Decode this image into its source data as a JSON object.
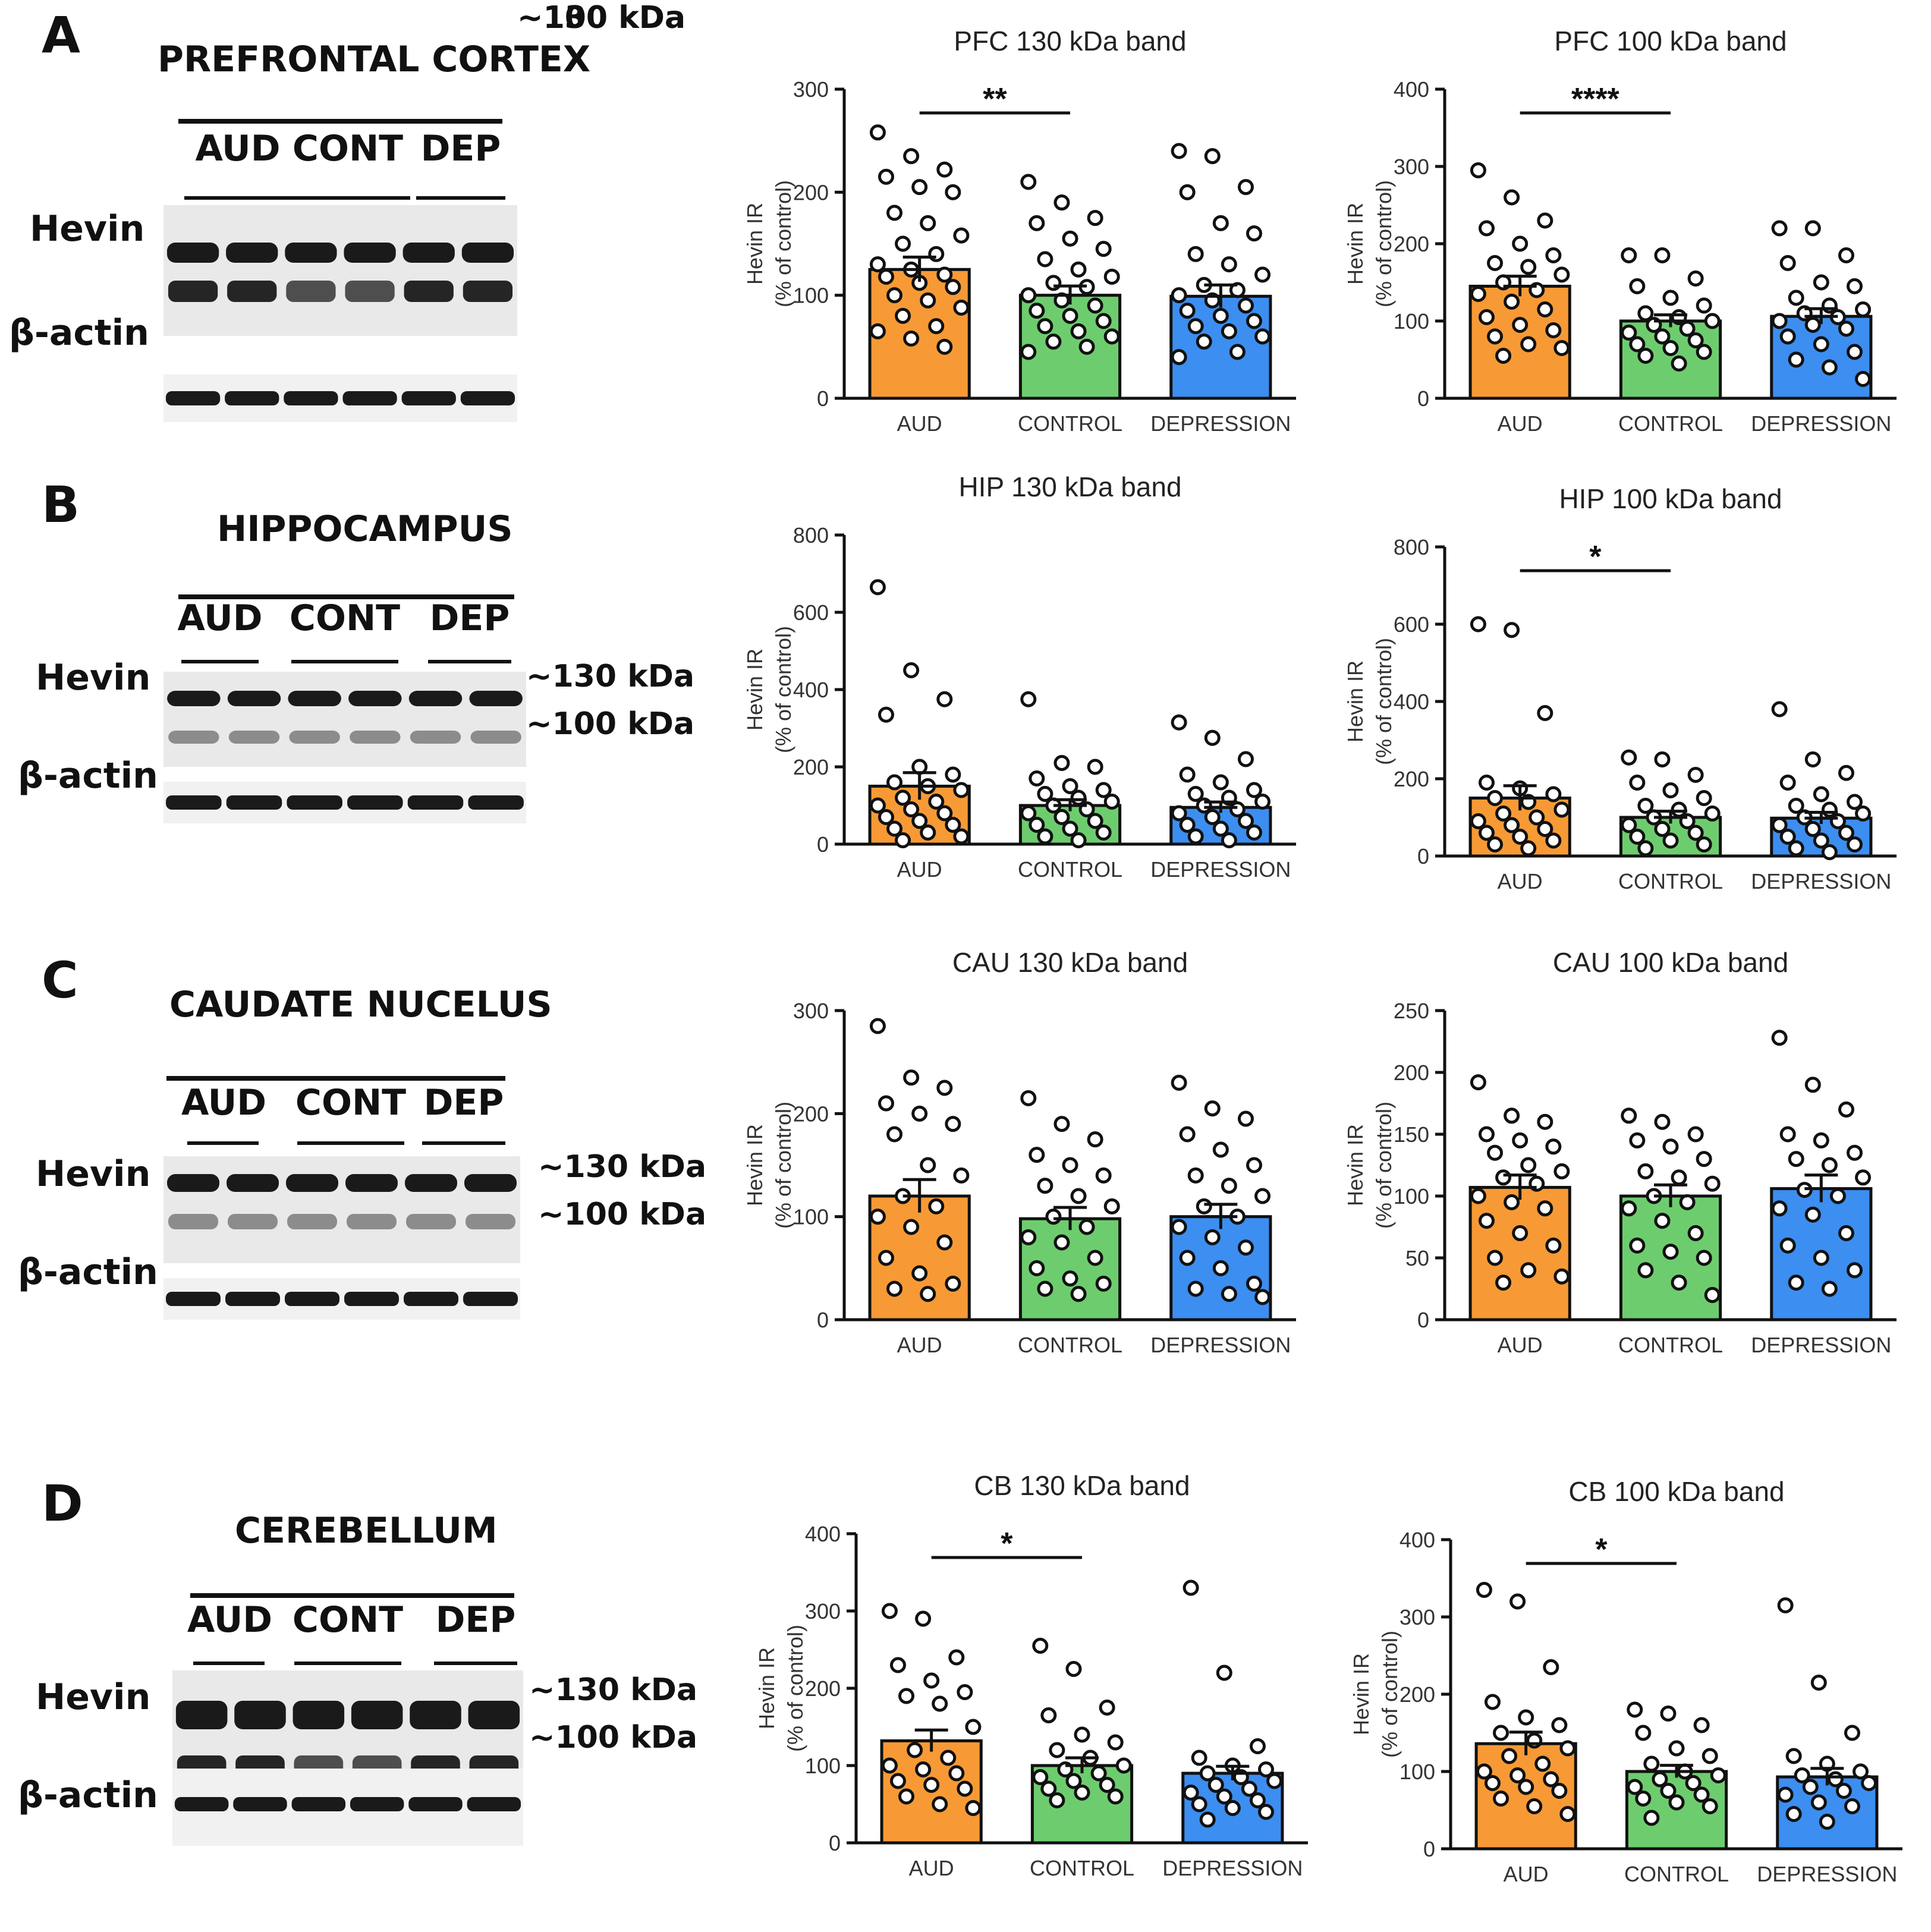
{
  "colors": {
    "aud": "#F79A35",
    "control": "#6DCD6E",
    "depression": "#3C8EF0",
    "axis": "#111111",
    "band": "#1a1a1a"
  },
  "panels": [
    {
      "letter": "A",
      "region": "PREFRONTAL CORTEX",
      "groups": [
        "AUD",
        "CONT",
        "DEP"
      ],
      "rows": {
        "hevin": "Hevin",
        "actin": "β-actin"
      },
      "bands": [
        "~130 kDa",
        "~100 kDa"
      ]
    },
    {
      "letter": "B",
      "region": "HIPPOCAMPUS",
      "groups": [
        "AUD",
        "CONT",
        "DEP"
      ],
      "rows": {
        "hevin": "Hevin",
        "actin": "β-actin"
      },
      "bands": [
        "~130 kDa",
        "~100 kDa"
      ]
    },
    {
      "letter": "C",
      "region": "CAUDATE NUCELUS",
      "groups": [
        "AUD",
        "CONT",
        "DEP"
      ],
      "rows": {
        "hevin": "Hevin",
        "actin": "β-actin"
      },
      "bands": [
        "~130 kDa",
        "~100 kDa"
      ]
    },
    {
      "letter": "D",
      "region": "CEREBELLUM",
      "groups": [
        "AUD",
        "CONT",
        "DEP"
      ],
      "rows": {
        "hevin": "Hevin",
        "actin": "β-actin"
      },
      "bands": [
        "~130 kDa",
        "~100 kDa"
      ]
    }
  ],
  "chart_data": [
    {
      "type": "bar",
      "title": "PFC 130 kDa band",
      "categories": [
        "AUD",
        "CONTROL",
        "DEPRESSION"
      ],
      "values": [
        125,
        100,
        99
      ],
      "sem": [
        12,
        9,
        11
      ],
      "ylabel_line1": "Hevin IR",
      "ylabel_line2": "(% of control)",
      "ylim": [
        0,
        300
      ],
      "yticks": [
        0,
        100,
        200,
        300
      ],
      "significance": {
        "from": 0,
        "to": 1,
        "label": "**"
      },
      "points": [
        [
          258,
          235,
          222,
          215,
          205,
          200,
          180,
          170,
          158,
          150,
          140,
          130,
          125,
          120,
          118,
          112,
          108,
          100,
          95,
          88,
          80,
          70,
          65,
          58,
          50
        ],
        [
          210,
          190,
          175,
          170,
          155,
          145,
          135,
          125,
          118,
          112,
          108,
          100,
          95,
          90,
          85,
          80,
          75,
          70,
          65,
          60,
          55,
          50,
          45
        ],
        [
          240,
          235,
          205,
          200,
          170,
          160,
          140,
          130,
          120,
          110,
          105,
          100,
          95,
          90,
          85,
          80,
          75,
          70,
          65,
          60,
          55,
          45,
          40
        ]
      ]
    },
    {
      "type": "bar",
      "title": "PFC 100 kDa band",
      "categories": [
        "AUD",
        "CONTROL",
        "DEPRESSION"
      ],
      "values": [
        145,
        100,
        106
      ],
      "sem": [
        13,
        8,
        10
      ],
      "ylabel_line1": "Hevin IR",
      "ylabel_line2": "(% of control)",
      "ylim": [
        0,
        400
      ],
      "yticks": [
        0,
        100,
        200,
        300,
        400
      ],
      "significance": {
        "from": 0,
        "to": 1,
        "label": "****"
      },
      "points": [
        [
          295,
          260,
          230,
          220,
          200,
          185,
          175,
          170,
          160,
          150,
          140,
          135,
          125,
          115,
          105,
          95,
          88,
          80,
          70,
          65,
          55
        ],
        [
          185,
          185,
          155,
          145,
          130,
          120,
          110,
          105,
          100,
          95,
          90,
          85,
          80,
          75,
          70,
          65,
          60,
          55,
          45
        ],
        [
          220,
          220,
          185,
          175,
          150,
          145,
          130,
          120,
          115,
          110,
          105,
          100,
          95,
          90,
          80,
          70,
          60,
          50,
          40,
          25
        ]
      ]
    },
    {
      "type": "bar",
      "title": "HIP 130 kDa band",
      "categories": [
        "AUD",
        "CONTROL",
        "DEPRESSION"
      ],
      "values": [
        150,
        100,
        95
      ],
      "sem": [
        35,
        15,
        14
      ],
      "ylabel_line1": "Hevin IR",
      "ylabel_line2": "(% of control)",
      "ylim": [
        0,
        800
      ],
      "yticks": [
        0,
        200,
        400,
        600,
        800
      ],
      "significance": null,
      "points": [
        [
          665,
          450,
          375,
          335,
          200,
          180,
          160,
          150,
          140,
          120,
          110,
          100,
          90,
          80,
          70,
          60,
          50,
          40,
          30,
          20,
          10
        ],
        [
          375,
          210,
          200,
          170,
          150,
          140,
          130,
          120,
          110,
          100,
          90,
          80,
          70,
          60,
          50,
          40,
          30,
          20,
          10
        ],
        [
          315,
          275,
          220,
          180,
          160,
          140,
          130,
          120,
          110,
          100,
          90,
          80,
          70,
          60,
          50,
          40,
          30,
          20,
          10
        ]
      ]
    },
    {
      "type": "bar",
      "title": "HIP 100 kDa band",
      "categories": [
        "AUD",
        "CONTROL",
        "DEPRESSION"
      ],
      "values": [
        150,
        100,
        98
      ],
      "sem": [
        32,
        16,
        15
      ],
      "ylabel_line1": "Hevin IR",
      "ylabel_line2": "(% of control)",
      "ylim": [
        0,
        800
      ],
      "yticks": [
        0,
        200,
        400,
        600,
        800
      ],
      "significance": {
        "from": 0,
        "to": 1,
        "label": "*"
      },
      "points": [
        [
          600,
          585,
          370,
          190,
          175,
          160,
          150,
          140,
          120,
          110,
          100,
          90,
          80,
          70,
          60,
          50,
          40,
          30,
          20
        ],
        [
          255,
          250,
          210,
          190,
          170,
          150,
          130,
          120,
          110,
          100,
          90,
          80,
          70,
          60,
          50,
          40,
          30,
          20
        ],
        [
          380,
          250,
          215,
          190,
          160,
          140,
          130,
          120,
          110,
          100,
          90,
          80,
          70,
          60,
          50,
          40,
          30,
          20,
          10
        ]
      ]
    },
    {
      "type": "bar",
      "title": "CAU 130 kDa band",
      "categories": [
        "AUD",
        "CONTROL",
        "DEPRESSION"
      ],
      "values": [
        120,
        98,
        100
      ],
      "sem": [
        16,
        11,
        12
      ],
      "ylabel_line1": "Hevin IR",
      "ylabel_line2": "(% of control)",
      "ylim": [
        0,
        300
      ],
      "yticks": [
        0,
        100,
        200,
        300
      ],
      "significance": null,
      "points": [
        [
          285,
          235,
          225,
          210,
          200,
          190,
          180,
          150,
          140,
          120,
          110,
          100,
          90,
          75,
          60,
          45,
          35,
          30,
          25
        ],
        [
          215,
          190,
          175,
          160,
          150,
          140,
          130,
          120,
          110,
          100,
          90,
          80,
          75,
          60,
          50,
          40,
          35,
          30,
          25
        ],
        [
          230,
          205,
          195,
          180,
          165,
          150,
          140,
          130,
          120,
          110,
          100,
          90,
          80,
          70,
          60,
          50,
          35,
          30,
          25,
          22
        ]
      ]
    },
    {
      "type": "bar",
      "title": "CAU 100 kDa band",
      "categories": [
        "AUD",
        "CONTROL",
        "DEPRESSION"
      ],
      "values": [
        107,
        100,
        106
      ],
      "sem": [
        10,
        9,
        11
      ],
      "ylabel_line1": "Hevin IR",
      "ylabel_line2": "(% of control)",
      "ylim": [
        0,
        250
      ],
      "yticks": [
        0,
        50,
        100,
        150,
        200,
        250
      ],
      "significance": null,
      "points": [
        [
          192,
          165,
          160,
          150,
          145,
          140,
          135,
          125,
          120,
          115,
          110,
          100,
          95,
          90,
          80,
          70,
          60,
          50,
          40,
          35,
          30
        ],
        [
          165,
          160,
          150,
          145,
          140,
          130,
          120,
          115,
          110,
          100,
          95,
          90,
          80,
          70,
          60,
          55,
          50,
          40,
          30,
          20
        ],
        [
          228,
          190,
          170,
          150,
          145,
          135,
          130,
          125,
          115,
          105,
          100,
          90,
          85,
          70,
          60,
          50,
          40,
          30,
          25
        ]
      ]
    },
    {
      "type": "bar",
      "title": "CB 130 kDa band",
      "categories": [
        "AUD",
        "CONTROL",
        "DEPRESSION"
      ],
      "values": [
        132,
        100,
        90
      ],
      "sem": [
        14,
        10,
        9
      ],
      "ylabel_line1": "Hevin IR",
      "ylabel_line2": "(% of control)",
      "ylim": [
        0,
        400
      ],
      "yticks": [
        0,
        100,
        200,
        300,
        400
      ],
      "significance": {
        "from": 0,
        "to": 1,
        "label": "*"
      },
      "points": [
        [
          300,
          290,
          240,
          230,
          210,
          195,
          190,
          180,
          150,
          120,
          110,
          100,
          95,
          90,
          80,
          75,
          70,
          60,
          50,
          45
        ],
        [
          255,
          225,
          175,
          165,
          140,
          130,
          120,
          110,
          100,
          95,
          90,
          85,
          80,
          75,
          70,
          65,
          60,
          55
        ],
        [
          330,
          220,
          125,
          110,
          100,
          95,
          90,
          85,
          80,
          75,
          70,
          65,
          60,
          55,
          50,
          45,
          40,
          30
        ]
      ]
    },
    {
      "type": "bar",
      "title": "CB 100 kDa band",
      "categories": [
        "AUD",
        "CONTROL",
        "DEPRESSION"
      ],
      "values": [
        136,
        100,
        93
      ],
      "sem": [
        15,
        8,
        11
      ],
      "ylabel_line1": "Hevin IR",
      "ylabel_line2": "(% of control)",
      "ylim": [
        0,
        400
      ],
      "yticks": [
        0,
        100,
        200,
        300,
        400
      ],
      "significance": {
        "from": 0,
        "to": 1,
        "label": "*"
      },
      "points": [
        [
          335,
          320,
          235,
          190,
          170,
          160,
          150,
          140,
          130,
          120,
          110,
          100,
          95,
          90,
          85,
          80,
          75,
          65,
          55,
          45
        ],
        [
          180,
          175,
          160,
          150,
          130,
          120,
          110,
          100,
          95,
          90,
          85,
          80,
          75,
          70,
          65,
          60,
          55,
          40
        ],
        [
          315,
          215,
          150,
          120,
          110,
          100,
          95,
          90,
          85,
          80,
          75,
          70,
          60,
          55,
          45,
          35
        ]
      ]
    }
  ]
}
